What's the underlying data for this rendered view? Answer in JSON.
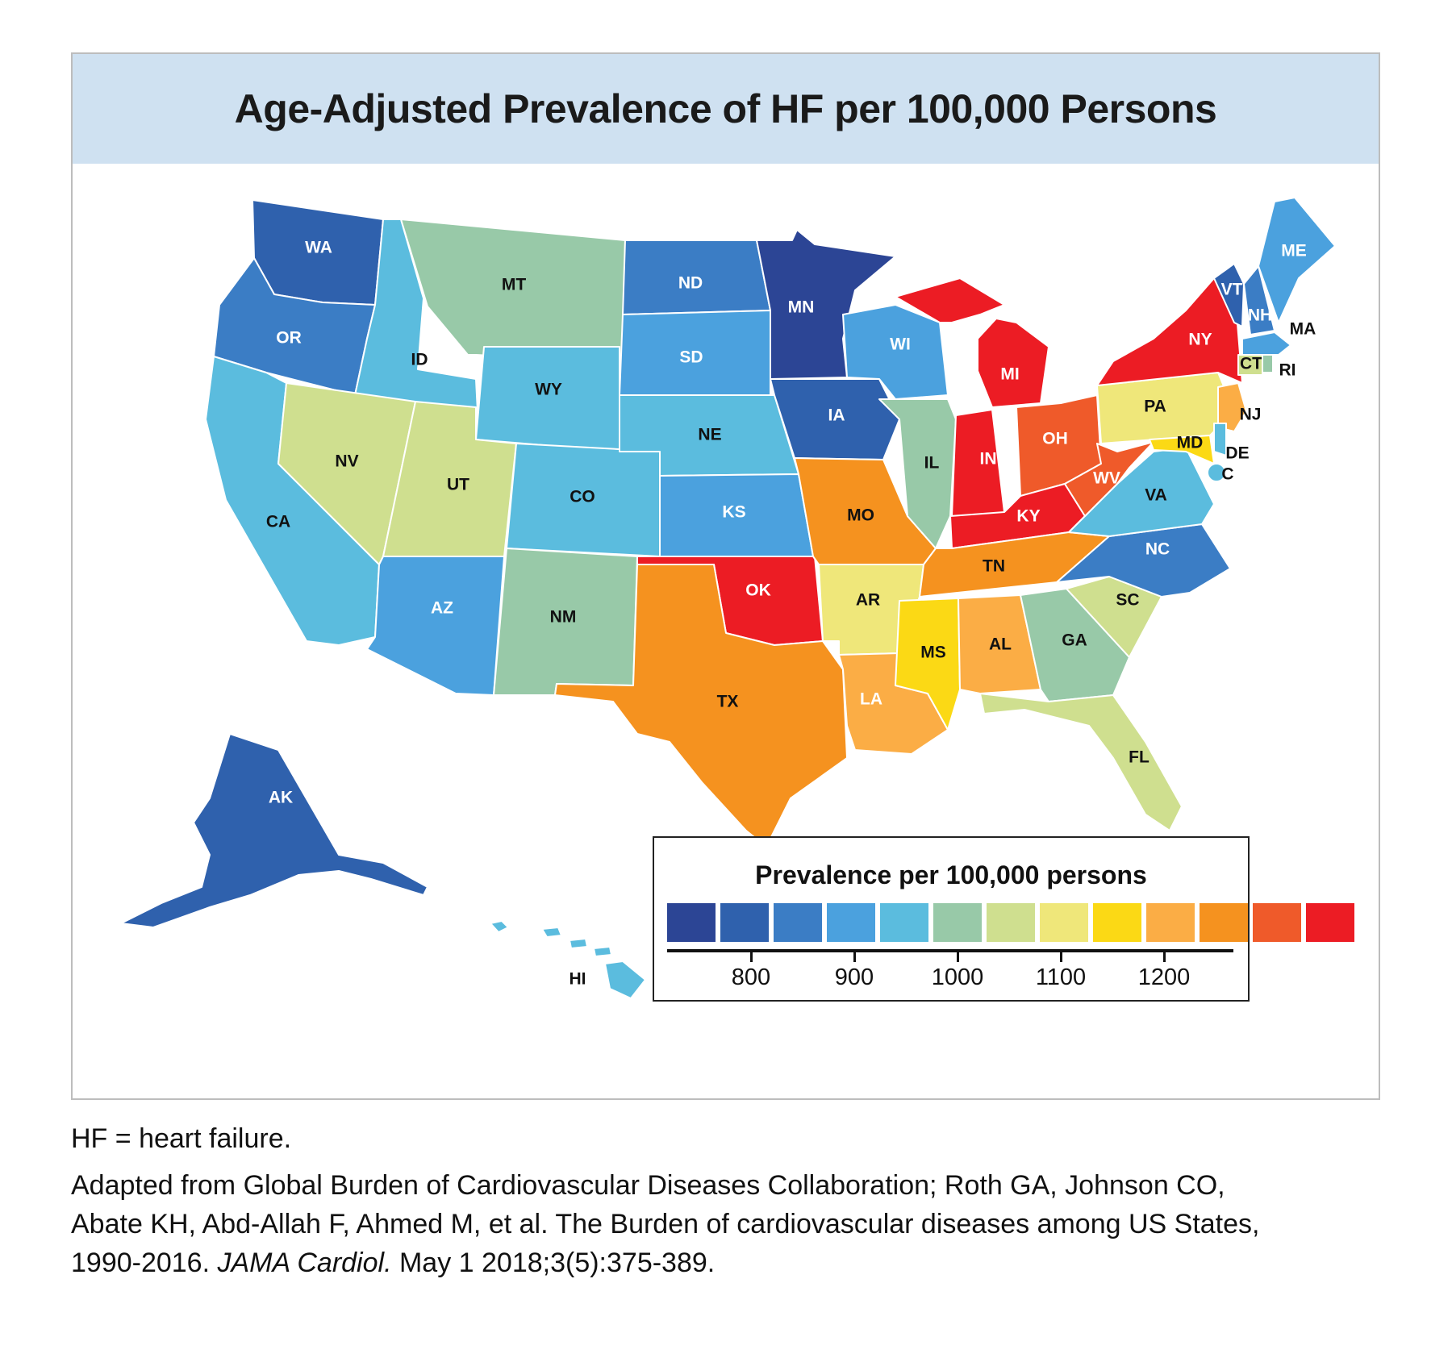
{
  "title": "Age-Adjusted Prevalence of HF per 100,000 Persons",
  "legend": {
    "title": "Prevalence per 100,000 persons",
    "colors": [
      "#2c4595",
      "#2f61ad",
      "#3b7dc5",
      "#4ba1de",
      "#5bbcde",
      "#98c9a8",
      "#cfdf8f",
      "#efe77a",
      "#fbd915",
      "#fbad45",
      "#f5921f",
      "#ef5a2a",
      "#ec1c24"
    ],
    "ticks": [
      "800",
      "900",
      "1000",
      "1100",
      "1200"
    ]
  },
  "states": [
    {
      "abbr": "WA",
      "color": "#2f61ad"
    },
    {
      "abbr": "OR",
      "color": "#3b7dc5"
    },
    {
      "abbr": "CA",
      "color": "#5bbcde"
    },
    {
      "abbr": "ID",
      "color": "#5bbcde"
    },
    {
      "abbr": "NV",
      "color": "#cfdf8f"
    },
    {
      "abbr": "MT",
      "color": "#98c9a8"
    },
    {
      "abbr": "WY",
      "color": "#5bbcde"
    },
    {
      "abbr": "UT",
      "color": "#cfdf8f"
    },
    {
      "abbr": "AZ",
      "color": "#4ba1de"
    },
    {
      "abbr": "CO",
      "color": "#5bbcde"
    },
    {
      "abbr": "NM",
      "color": "#98c9a8"
    },
    {
      "abbr": "ND",
      "color": "#3b7dc5"
    },
    {
      "abbr": "SD",
      "color": "#4ba1de"
    },
    {
      "abbr": "NE",
      "color": "#5bbcde"
    },
    {
      "abbr": "KS",
      "color": "#4ba1de"
    },
    {
      "abbr": "OK",
      "color": "#ec1c24"
    },
    {
      "abbr": "TX",
      "color": "#f5921f"
    },
    {
      "abbr": "MN",
      "color": "#2c4595"
    },
    {
      "abbr": "IA",
      "color": "#2f61ad"
    },
    {
      "abbr": "MO",
      "color": "#f5921f"
    },
    {
      "abbr": "AR",
      "color": "#efe77a"
    },
    {
      "abbr": "LA",
      "color": "#fbad45"
    },
    {
      "abbr": "WI",
      "color": "#4ba1de"
    },
    {
      "abbr": "IL",
      "color": "#98c9a8"
    },
    {
      "abbr": "MI",
      "color": "#ec1c24"
    },
    {
      "abbr": "IN",
      "color": "#ec1c24"
    },
    {
      "abbr": "OH",
      "color": "#ef5a2a"
    },
    {
      "abbr": "KY",
      "color": "#ec1c24"
    },
    {
      "abbr": "TN",
      "color": "#f5921f"
    },
    {
      "abbr": "MS",
      "color": "#fbd915"
    },
    {
      "abbr": "AL",
      "color": "#fbad45"
    },
    {
      "abbr": "GA",
      "color": "#98c9a8"
    },
    {
      "abbr": "FL",
      "color": "#cfdf8f"
    },
    {
      "abbr": "SC",
      "color": "#cfdf8f"
    },
    {
      "abbr": "NC",
      "color": "#3b7dc5"
    },
    {
      "abbr": "VA",
      "color": "#5bbcde"
    },
    {
      "abbr": "WV",
      "color": "#ef5a2a"
    },
    {
      "abbr": "PA",
      "color": "#efe77a"
    },
    {
      "abbr": "NY",
      "color": "#ec1c24"
    },
    {
      "abbr": "VT",
      "color": "#2f61ad"
    },
    {
      "abbr": "NH",
      "color": "#3b7dc5"
    },
    {
      "abbr": "ME",
      "color": "#4ba1de"
    },
    {
      "abbr": "MA",
      "color": "#4ba1de"
    },
    {
      "abbr": "CT",
      "color": "#cfdf8f"
    },
    {
      "abbr": "RI",
      "color": "#98c9a8"
    },
    {
      "abbr": "NJ",
      "color": "#fbad45"
    },
    {
      "abbr": "DE",
      "color": "#5bbcde"
    },
    {
      "abbr": "MD",
      "color": "#fbd915"
    },
    {
      "abbr": "DC",
      "label": "C",
      "color": "#5bbcde"
    },
    {
      "abbr": "AK",
      "color": "#2f61ad"
    },
    {
      "abbr": "HI",
      "color": "#5bbcde"
    }
  ],
  "caption": {
    "line1": "HF = heart failure.",
    "line2": "Adapted from Global Burden of Cardiovascular Diseases Collaboration; Roth GA, Johnson CO,",
    "line3": "Abate KH, Abd-Allah F, Ahmed M, et al. The Burden of cardiovascular diseases among US States,",
    "line4a": "1990-2016. ",
    "line4b": "JAMA Cardiol.",
    "line4c": " May 1 2018;3(5):375-389."
  }
}
